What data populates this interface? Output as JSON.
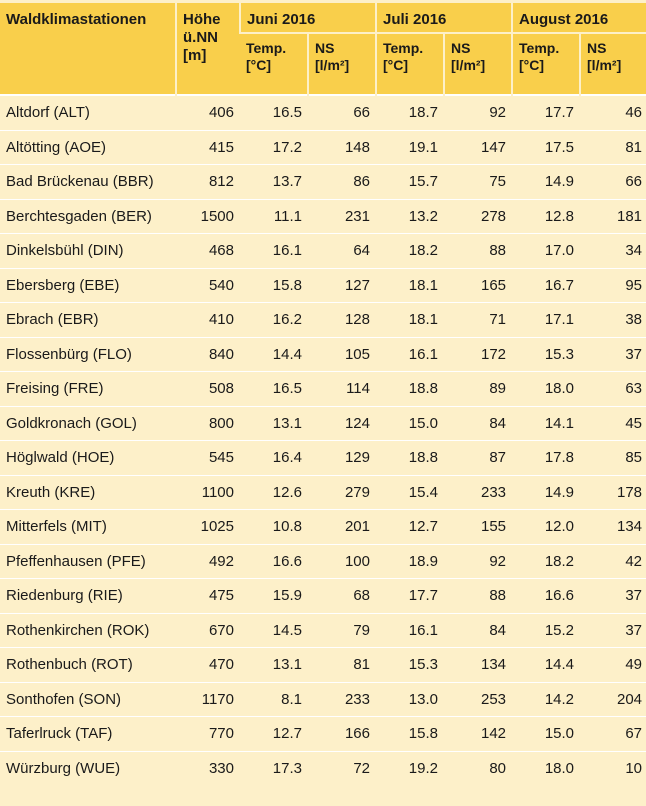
{
  "header": {
    "station_col": "Waldklimastationen",
    "height_col_line1": "Höhe",
    "height_col_line2": "ü.NN",
    "height_col_line3": "[m]",
    "months": [
      "Juni 2016",
      "Juli 2016",
      "August 2016"
    ],
    "temp_label": "Temp.",
    "temp_unit": "[°C]",
    "ns_label": "NS",
    "ns_unit": "[l/m²]"
  },
  "rows": [
    {
      "station": "Altdorf (ALT)",
      "hoehe": "406",
      "jun_t": "16.5",
      "jun_ns": "66",
      "jul_t": "18.7",
      "jul_ns": "92",
      "aug_t": "17.7",
      "aug_ns": "46"
    },
    {
      "station": "Altötting (AOE)",
      "hoehe": "415",
      "jun_t": "17.2",
      "jun_ns": "148",
      "jul_t": "19.1",
      "jul_ns": "147",
      "aug_t": "17.5",
      "aug_ns": "81"
    },
    {
      "station": "Bad Brückenau (BBR)",
      "hoehe": "812",
      "jun_t": "13.7",
      "jun_ns": "86",
      "jul_t": "15.7",
      "jul_ns": "75",
      "aug_t": "14.9",
      "aug_ns": "66"
    },
    {
      "station": "Berchtesgaden (BER)",
      "hoehe": "1500",
      "jun_t": "11.1",
      "jun_ns": "231",
      "jul_t": "13.2",
      "jul_ns": "278",
      "aug_t": "12.8",
      "aug_ns": "181"
    },
    {
      "station": "Dinkelsbühl (DIN)",
      "hoehe": "468",
      "jun_t": "16.1",
      "jun_ns": "64",
      "jul_t": "18.2",
      "jul_ns": "88",
      "aug_t": "17.0",
      "aug_ns": "34"
    },
    {
      "station": "Ebersberg (EBE)",
      "hoehe": "540",
      "jun_t": "15.8",
      "jun_ns": "127",
      "jul_t": "18.1",
      "jul_ns": "165",
      "aug_t": "16.7",
      "aug_ns": "95"
    },
    {
      "station": "Ebrach (EBR)",
      "hoehe": "410",
      "jun_t": "16.2",
      "jun_ns": "128",
      "jul_t": "18.1",
      "jul_ns": "71",
      "aug_t": "17.1",
      "aug_ns": "38"
    },
    {
      "station": "Flossenbürg (FLO)",
      "hoehe": "840",
      "jun_t": "14.4",
      "jun_ns": "105",
      "jul_t": "16.1",
      "jul_ns": "172",
      "aug_t": "15.3",
      "aug_ns": "37"
    },
    {
      "station": "Freising (FRE)",
      "hoehe": "508",
      "jun_t": "16.5",
      "jun_ns": "114",
      "jul_t": "18.8",
      "jul_ns": "89",
      "aug_t": "18.0",
      "aug_ns": "63"
    },
    {
      "station": "Goldkronach (GOL)",
      "hoehe": "800",
      "jun_t": "13.1",
      "jun_ns": "124",
      "jul_t": "15.0",
      "jul_ns": "84",
      "aug_t": "14.1",
      "aug_ns": "45"
    },
    {
      "station": "Höglwald (HOE)",
      "hoehe": "545",
      "jun_t": "16.4",
      "jun_ns": "129",
      "jul_t": "18.8",
      "jul_ns": "87",
      "aug_t": "17.8",
      "aug_ns": "85"
    },
    {
      "station": "Kreuth (KRE)",
      "hoehe": "1100",
      "jun_t": "12.6",
      "jun_ns": "279",
      "jul_t": "15.4",
      "jul_ns": "233",
      "aug_t": "14.9",
      "aug_ns": "178"
    },
    {
      "station": "Mitterfels (MIT)",
      "hoehe": "1025",
      "jun_t": "10.8",
      "jun_ns": "201",
      "jul_t": "12.7",
      "jul_ns": "155",
      "aug_t": "12.0",
      "aug_ns": "134"
    },
    {
      "station": "Pfeffenhausen (PFE)",
      "hoehe": "492",
      "jun_t": "16.6",
      "jun_ns": "100",
      "jul_t": "18.9",
      "jul_ns": "92",
      "aug_t": "18.2",
      "aug_ns": "42"
    },
    {
      "station": "Riedenburg (RIE)",
      "hoehe": "475",
      "jun_t": "15.9",
      "jun_ns": "68",
      "jul_t": "17.7",
      "jul_ns": "88",
      "aug_t": "16.6",
      "aug_ns": "37"
    },
    {
      "station": "Rothenkirchen (ROK)",
      "hoehe": "670",
      "jun_t": "14.5",
      "jun_ns": "79",
      "jul_t": "16.1",
      "jul_ns": "84",
      "aug_t": "15.2",
      "aug_ns": "37"
    },
    {
      "station": "Rothenbuch (ROT)",
      "hoehe": "470",
      "jun_t": "13.1",
      "jun_ns": "81",
      "jul_t": "15.3",
      "jul_ns": "134",
      "aug_t": "14.4",
      "aug_ns": "49"
    },
    {
      "station": "Sonthofen (SON)",
      "hoehe": "1170",
      "jun_t": "8.1",
      "jun_ns": "233",
      "jul_t": "13.0",
      "jul_ns": "253",
      "aug_t": "14.2",
      "aug_ns": "204"
    },
    {
      "station": "Taferlruck (TAF)",
      "hoehe": "770",
      "jun_t": "12.7",
      "jun_ns": "166",
      "jul_t": "15.8",
      "jul_ns": "142",
      "aug_t": "15.0",
      "aug_ns": "67"
    },
    {
      "station": "Würzburg (WUE)",
      "hoehe": "330",
      "jun_t": "17.3",
      "jun_ns": "72",
      "jul_t": "19.2",
      "jul_ns": "80",
      "aug_t": "18.0",
      "aug_ns": "10"
    }
  ]
}
